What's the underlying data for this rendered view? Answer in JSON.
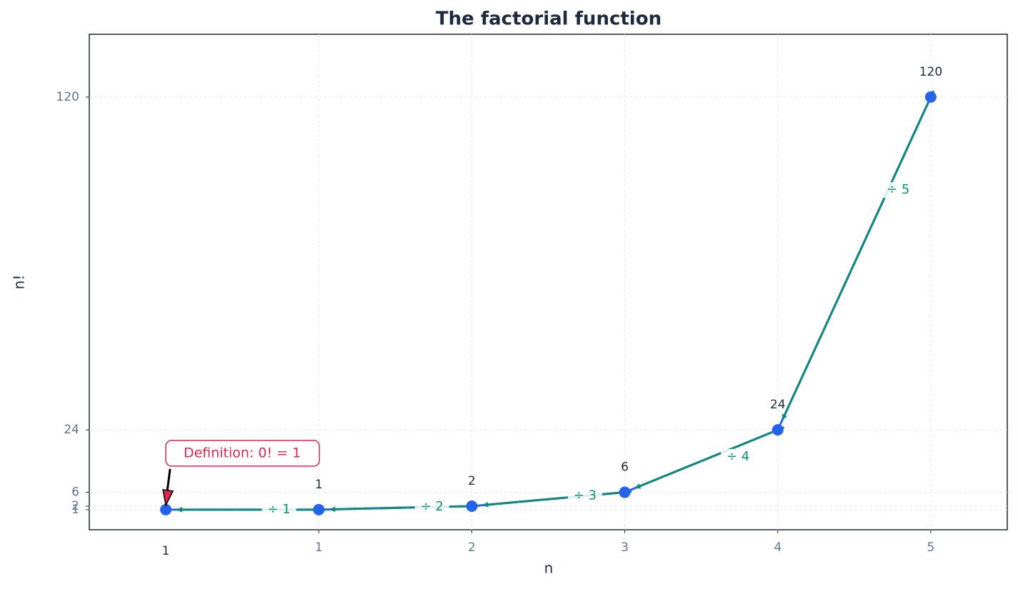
{
  "chart_data": {
    "type": "line",
    "title": "The factorial function",
    "x_label": "n",
    "y_label": "n!",
    "x": [
      0,
      1,
      2,
      3,
      4,
      5
    ],
    "values": [
      1,
      1,
      2,
      6,
      24,
      120
    ],
    "color": "#2563eb",
    "xlim": [
      -0.5,
      5.5
    ],
    "xticks": [
      1,
      2,
      3,
      4,
      5
    ],
    "ylim": [
      -4.8,
      138.1
    ],
    "yticks": [
      1,
      2,
      6,
      24,
      120
    ],
    "grid": true,
    "step_labels": [
      "÷ 1",
      "÷ 2",
      "÷ 3",
      "÷ 4",
      "÷ 5"
    ],
    "step_color": "#11877f",
    "annotation": "Definition: 0! = 1",
    "annotation_color": "#dc2650"
  }
}
